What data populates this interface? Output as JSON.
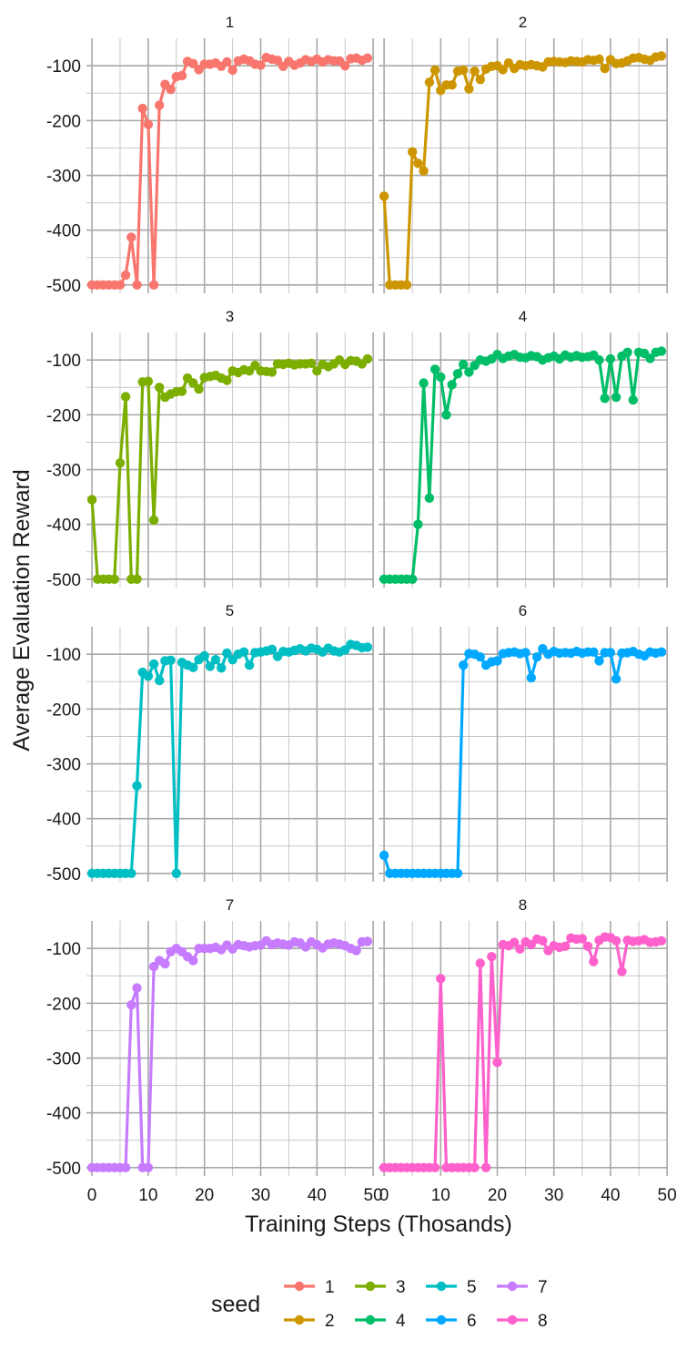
{
  "chart_data": {
    "type": "line",
    "facet_by": "seed",
    "layout": {
      "rows": 4,
      "cols": 2
    },
    "xlabel": "Training Steps (Thosands)",
    "ylabel": "Average Evaluation Reward",
    "xlim": [
      0,
      49
    ],
    "ylim": [
      -500,
      -65
    ],
    "x_ticks": [
      0,
      10,
      20,
      30,
      40,
      50
    ],
    "y_ticks": [
      -500,
      -400,
      -300,
      -200,
      -100
    ],
    "legend": {
      "title": "seed",
      "position": "bottom",
      "entries": [
        "1",
        "2",
        "3",
        "4",
        "5",
        "6",
        "7",
        "8"
      ]
    },
    "marker": "circle",
    "grid": true,
    "x": [
      0,
      1,
      2,
      3,
      4,
      5,
      6,
      7,
      8,
      9,
      10,
      11,
      12,
      13,
      14,
      15,
      16,
      17,
      18,
      19,
      20,
      21,
      22,
      23,
      24,
      25,
      26,
      27,
      28,
      29,
      30,
      31,
      32,
      33,
      34,
      35,
      36,
      37,
      38,
      39,
      40,
      41,
      42,
      43,
      44,
      45,
      46,
      47,
      48,
      49
    ],
    "series": [
      {
        "name": "1",
        "color": "#F8766D",
        "values": [
          -500,
          -500,
          -500,
          -500,
          -500,
          -500,
          -482,
          -413,
          -500,
          -178,
          -207,
          -500,
          -172,
          -134,
          -143,
          -120,
          -118,
          -92,
          -96,
          -107,
          -97,
          -97,
          -95,
          -101,
          -93,
          -108,
          -91,
          -88,
          -91,
          -97,
          -99,
          -85,
          -88,
          -90,
          -101,
          -92,
          -99,
          -95,
          -89,
          -92,
          -88,
          -93,
          -89,
          -91,
          -91,
          -100,
          -87,
          -86,
          -90,
          -86
        ]
      },
      {
        "name": "2",
        "color": "#CD9600",
        "values": [
          -338,
          -500,
          -500,
          -500,
          -500,
          -257,
          -278,
          -292,
          -130,
          -108,
          -145,
          -135,
          -135,
          -110,
          -108,
          -142,
          -110,
          -125,
          -106,
          -101,
          -100,
          -107,
          -95,
          -105,
          -98,
          -100,
          -98,
          -100,
          -102,
          -93,
          -92,
          -93,
          -94,
          -91,
          -92,
          -93,
          -89,
          -90,
          -88,
          -105,
          -89,
          -96,
          -95,
          -91,
          -86,
          -85,
          -88,
          -90,
          -84,
          -82
        ]
      },
      {
        "name": "3",
        "color": "#7CAE00",
        "values": [
          -355,
          -500,
          -500,
          -500,
          -500,
          -288,
          -167,
          -500,
          -500,
          -140,
          -139,
          -392,
          -150,
          -168,
          -162,
          -158,
          -157,
          -133,
          -142,
          -153,
          -132,
          -130,
          -128,
          -133,
          -137,
          -120,
          -123,
          -118,
          -120,
          -110,
          -120,
          -121,
          -122,
          -107,
          -108,
          -106,
          -109,
          -107,
          -107,
          -106,
          -120,
          -108,
          -112,
          -107,
          -100,
          -108,
          -101,
          -102,
          -107,
          -98
        ]
      },
      {
        "name": "4",
        "color": "#00BE67",
        "values": [
          -500,
          -500,
          -500,
          -500,
          -500,
          -500,
          -400,
          -142,
          -352,
          -117,
          -131,
          -200,
          -145,
          -125,
          -108,
          -122,
          -110,
          -100,
          -102,
          -98,
          -90,
          -97,
          -93,
          -90,
          -95,
          -96,
          -92,
          -94,
          -100,
          -96,
          -93,
          -98,
          -91,
          -95,
          -92,
          -95,
          -94,
          -91,
          -100,
          -170,
          -98,
          -168,
          -93,
          -86,
          -173,
          -86,
          -88,
          -97,
          -86,
          -84
        ]
      },
      {
        "name": "5",
        "color": "#00BFC4",
        "values": [
          -500,
          -500,
          -500,
          -500,
          -500,
          -500,
          -500,
          -500,
          -340,
          -133,
          -140,
          -118,
          -148,
          -112,
          -111,
          -500,
          -115,
          -120,
          -124,
          -110,
          -103,
          -122,
          -110,
          -125,
          -98,
          -110,
          -100,
          -96,
          -120,
          -97,
          -96,
          -94,
          -91,
          -104,
          -95,
          -96,
          -93,
          -90,
          -94,
          -89,
          -91,
          -96,
          -89,
          -94,
          -96,
          -92,
          -82,
          -84,
          -88,
          -87
        ]
      },
      {
        "name": "6",
        "color": "#00A9FF",
        "values": [
          -467,
          -500,
          -500,
          -500,
          -500,
          -500,
          -500,
          -500,
          -500,
          -500,
          -500,
          -500,
          -500,
          -500,
          -120,
          -99,
          -100,
          -105,
          -120,
          -114,
          -112,
          -99,
          -97,
          -96,
          -99,
          -97,
          -143,
          -105,
          -90,
          -100,
          -95,
          -98,
          -97,
          -98,
          -95,
          -98,
          -96,
          -96,
          -112,
          -97,
          -97,
          -145,
          -98,
          -97,
          -95,
          -100,
          -103,
          -96,
          -98,
          -96
        ]
      },
      {
        "name": "7",
        "color": "#C77CFF",
        "values": [
          -500,
          -500,
          -500,
          -500,
          -500,
          -500,
          -500,
          -203,
          -172,
          -500,
          -500,
          -133,
          -122,
          -128,
          -106,
          -100,
          -106,
          -115,
          -122,
          -100,
          -100,
          -100,
          -98,
          -102,
          -94,
          -101,
          -93,
          -95,
          -97,
          -95,
          -94,
          -86,
          -93,
          -90,
          -92,
          -94,
          -88,
          -90,
          -97,
          -88,
          -93,
          -99,
          -92,
          -90,
          -92,
          -95,
          -100,
          -104,
          -88,
          -87
        ]
      },
      {
        "name": "8",
        "color": "#FF61CC",
        "values": [
          -500,
          -500,
          -500,
          -500,
          -500,
          -500,
          -500,
          -500,
          -500,
          -500,
          -155,
          -500,
          -500,
          -500,
          -500,
          -500,
          -500,
          -127,
          -500,
          -115,
          -308,
          -93,
          -95,
          -89,
          -101,
          -88,
          -93,
          -83,
          -86,
          -104,
          -95,
          -98,
          -96,
          -81,
          -83,
          -82,
          -96,
          -124,
          -85,
          -79,
          -80,
          -86,
          -142,
          -85,
          -87,
          -86,
          -84,
          -89,
          -88,
          -86
        ]
      }
    ]
  }
}
